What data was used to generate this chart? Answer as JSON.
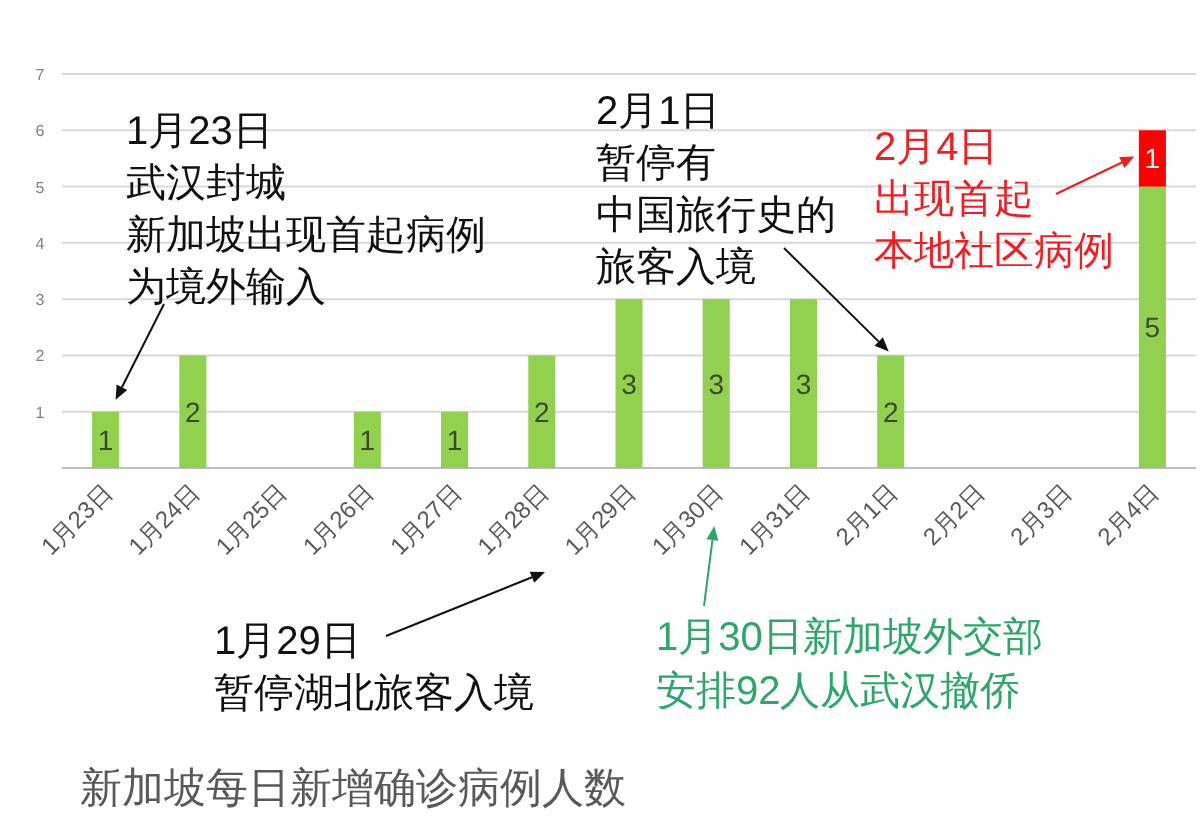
{
  "chart_data": {
    "type": "bar",
    "title": "新加坡每日新增确诊病例人数",
    "categories": [
      "1月23日",
      "1月24日",
      "1月25日",
      "1月26日",
      "1月27日",
      "1月28日",
      "1月29日",
      "1月30日",
      "1月31日",
      "2月1日",
      "2月2日",
      "2月3日",
      "2月4日"
    ],
    "stacked": true,
    "series": [
      {
        "color": "#92d050",
        "values": [
          1,
          2,
          0,
          1,
          1,
          2,
          3,
          3,
          3,
          2,
          0,
          0,
          5
        ],
        "value_labels": [
          "1",
          "2",
          null,
          "1",
          "1",
          "2",
          "3",
          "3",
          "3",
          "2",
          null,
          null,
          "5"
        ]
      },
      {
        "color": "#ff0000",
        "values": [
          null,
          null,
          null,
          null,
          null,
          null,
          null,
          null,
          null,
          null,
          null,
          null,
          1
        ],
        "value_labels": [
          null,
          null,
          null,
          null,
          null,
          null,
          null,
          null,
          null,
          null,
          null,
          null,
          "1"
        ]
      }
    ],
    "ylim": [
      0,
      7
    ],
    "yticks": [
      {
        "value": 0,
        "label": null
      },
      1,
      2,
      3,
      4,
      5,
      6,
      7
    ],
    "grid": "y",
    "annotations": [
      {
        "text": "1月23日武汉封城新加坡出现首起病例为境外输入",
        "x": "1月23日",
        "y": 1
      },
      {
        "text": "2月1日暂停有中国旅行史的旅客入境",
        "x": "2月1日",
        "y": 2
      },
      {
        "text": "2月4日出现首起本地社区病例",
        "x": "2月4日",
        "y": 5.5
      },
      "1月29日暂停湖北旅客入境",
      "1月30日新加坡外交部安排92人从武汉撤侨"
    ]
  }
}
